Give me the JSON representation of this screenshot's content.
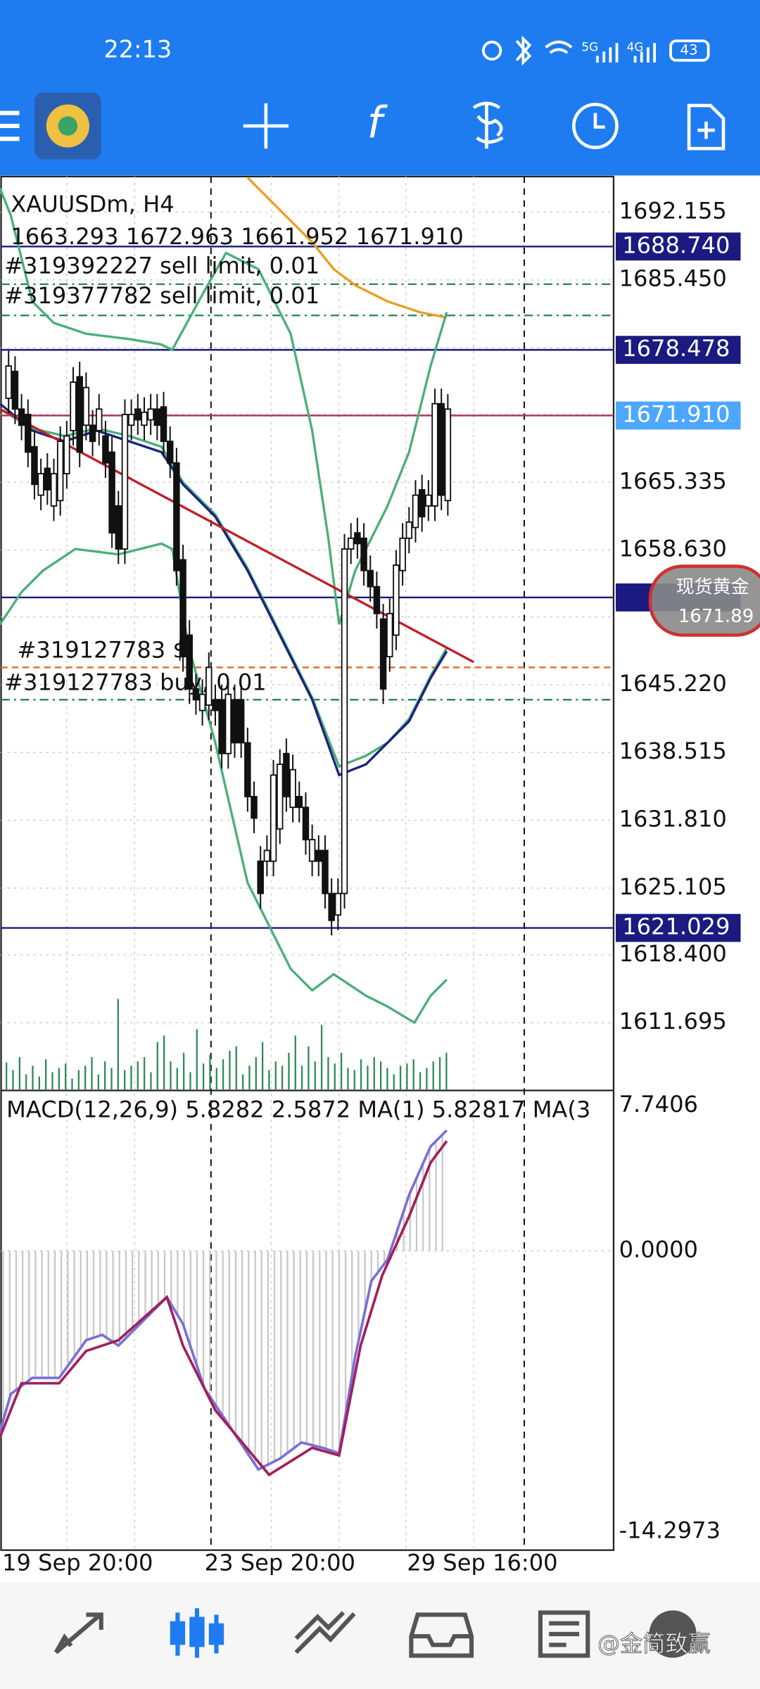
{
  "status_bar": {
    "time": "22:13",
    "signal_labels": [
      "5G",
      "4G"
    ],
    "battery": "43"
  },
  "chart": {
    "title": "XAUUSDm, H4",
    "ohlc": "1663.293 1672.963 1661.952 1671.910",
    "orders": [
      "#319392227 sell limit, 0.01",
      "#319377782 sell limit, 0.01",
      "#319127783 $",
      "#319127783 buy, 0.01"
    ],
    "price_axis": [
      "1692.155",
      "1685.450",
      "1665.335",
      "1658.630",
      "1645.220",
      "1638.515",
      "1631.810",
      "1625.105",
      "1618.400",
      "1611.695"
    ],
    "price_tags": [
      "1688.740",
      "1678.478",
      "1671.910",
      "1621.029"
    ],
    "indicator": "MACD(12,26,9) 5.8282 2.5872 MA(1) 5.82817 MA(3",
    "indicator_axis": [
      "7.7406",
      "0.0000",
      "-14.2973"
    ],
    "dates": [
      "19 Sep 20:00",
      "23 Sep 20:00",
      "29 Sep 16:00"
    ]
  },
  "quote_widget": {
    "name": "现货黄金",
    "price": "1671.89"
  },
  "watermark": "@金简致赢"
}
